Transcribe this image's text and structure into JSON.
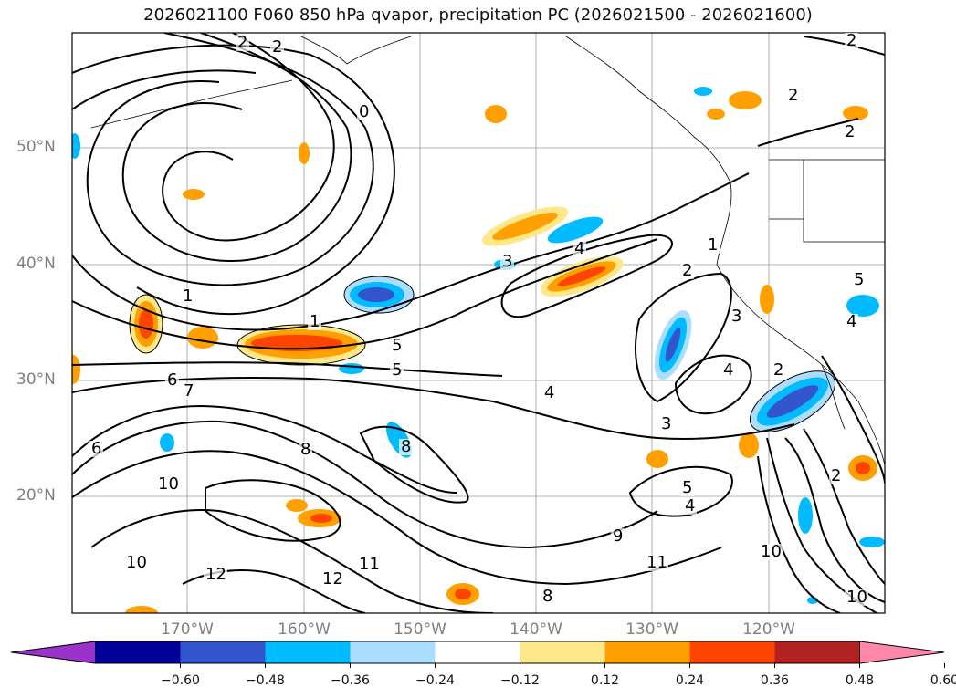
{
  "title": "2026021100 F060 850 hPa qvapor, precipitation PC (2026021500 - 2026021600)",
  "lat_labels": [
    "50°N",
    "40°N",
    "30°N",
    "20°N"
  ],
  "lon_labels": [
    "170°W",
    "160°W",
    "150°W",
    "140°W",
    "130°W",
    "120°W"
  ],
  "colorbar": {
    "colors": [
      "#9933cc",
      "#000099",
      "#3355cc",
      "#00bbff",
      "#aaddff",
      "#ffffff",
      "#ffe88a",
      "#ffa000",
      "#ff4400",
      "#b22222",
      "#ff88aa"
    ],
    "ticks": [
      "−0.60",
      "−0.48",
      "−0.36",
      "−0.24",
      "−0.12",
      "0.12",
      "0.24",
      "0.36",
      "0.48",
      "0.60"
    ]
  },
  "contour_labels": [
    "2",
    "2",
    "0",
    "2",
    "2",
    "1",
    "1",
    "5",
    "5",
    "6",
    "7",
    "6",
    "10",
    "10",
    "12",
    "12",
    "11",
    "11",
    "9",
    "8",
    "8",
    "8",
    "4",
    "4",
    "3",
    "3",
    "2",
    "2",
    "1",
    "4",
    "5",
    "4",
    "5",
    "2",
    "3",
    "10",
    "4",
    "2",
    "10"
  ]
}
